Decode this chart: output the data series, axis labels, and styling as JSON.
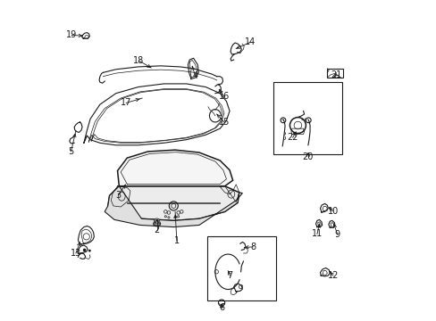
{
  "bg_color": "#ffffff",
  "line_color": "#1a1a1a",
  "figure_size": [
    4.89,
    3.6
  ],
  "dpi": 100,
  "weatherstrip_outer": {
    "x": [
      0.08,
      0.09,
      0.1,
      0.13,
      0.18,
      0.25,
      0.33,
      0.4,
      0.46,
      0.505,
      0.525,
      0.535,
      0.525,
      0.505,
      0.46,
      0.4,
      0.33,
      0.25,
      0.18,
      0.13,
      0.1,
      0.09,
      0.08,
      0.08
    ],
    "y": [
      0.555,
      0.595,
      0.63,
      0.675,
      0.71,
      0.73,
      0.74,
      0.74,
      0.73,
      0.71,
      0.685,
      0.655,
      0.625,
      0.6,
      0.58,
      0.565,
      0.555,
      0.548,
      0.548,
      0.555,
      0.565,
      0.578,
      0.555,
      0.555
    ]
  },
  "weatherstrip_inner": {
    "x": [
      0.095,
      0.105,
      0.115,
      0.145,
      0.195,
      0.255,
      0.33,
      0.4,
      0.455,
      0.492,
      0.51,
      0.518,
      0.51,
      0.492,
      0.455,
      0.4,
      0.33,
      0.255,
      0.195,
      0.145,
      0.115,
      0.105,
      0.095,
      0.095
    ],
    "y": [
      0.558,
      0.592,
      0.622,
      0.663,
      0.695,
      0.715,
      0.724,
      0.724,
      0.714,
      0.695,
      0.672,
      0.648,
      0.622,
      0.602,
      0.584,
      0.57,
      0.562,
      0.555,
      0.555,
      0.56,
      0.568,
      0.58,
      0.558,
      0.558
    ]
  }
}
